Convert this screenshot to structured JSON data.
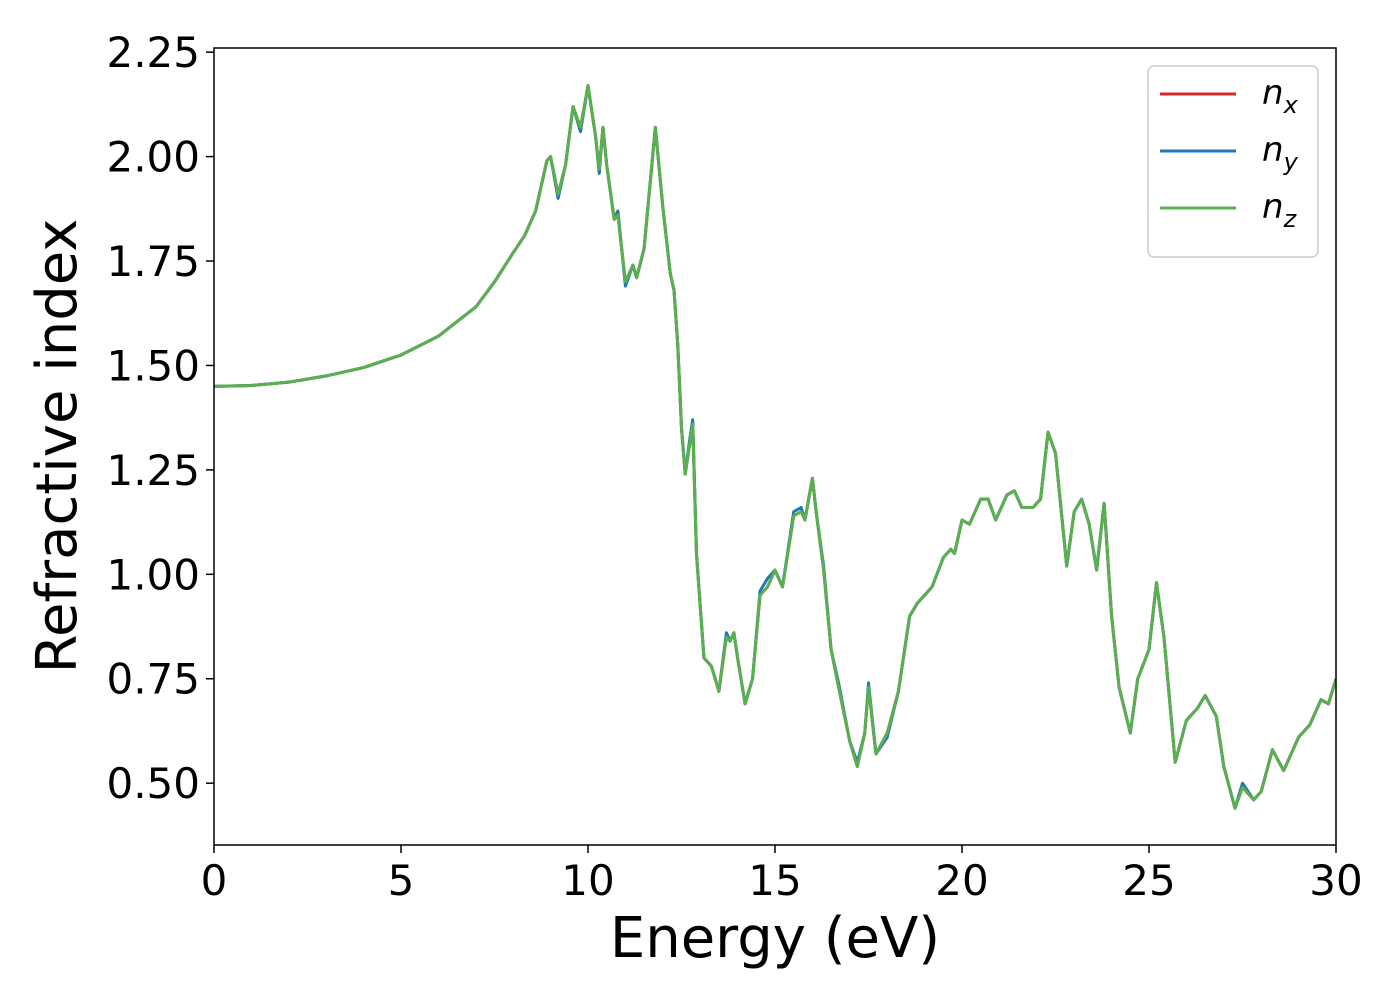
{
  "chart_data": {
    "type": "line",
    "xlabel": "Energy (eV)",
    "ylabel": "Refractive index",
    "xlim": [
      0,
      30
    ],
    "xticks": [
      0,
      5,
      10,
      15,
      20,
      25,
      30
    ],
    "ylim": [
      0.352,
      2.26
    ],
    "yticks": [
      {
        "value": 0.5,
        "label": "0.50"
      },
      0.75,
      {
        "value": 1,
        "label": "1.00"
      },
      1.25,
      {
        "value": 1.5,
        "label": "1.50"
      },
      1.75,
      {
        "value": 2,
        "label": "2.00"
      },
      2.25
    ],
    "legend": "upper right",
    "x": [
      0,
      1,
      2,
      3,
      4,
      5,
      6,
      7,
      7.5,
      8,
      8.3,
      8.6,
      8.9,
      9.0,
      9.2,
      9.4,
      9.6,
      9.8,
      10.0,
      10.2,
      10.3,
      10.4,
      10.5,
      10.7,
      10.8,
      11.0,
      11.2,
      11.3,
      11.5,
      11.8,
      12.0,
      12.2,
      12.3,
      12.4,
      12.5,
      12.6,
      12.7,
      12.8,
      12.9,
      13.1,
      13.3,
      13.5,
      13.7,
      13.8,
      13.9,
      14.0,
      14.2,
      14.4,
      14.6,
      14.8,
      15.0,
      15.2,
      15.5,
      15.7,
      15.8,
      16.0,
      16.1,
      16.3,
      16.5,
      16.7,
      17.0,
      17.2,
      17.4,
      17.5,
      17.7,
      18.0,
      18.3,
      18.6,
      18.8,
      19.2,
      19.5,
      19.7,
      19.8,
      20.0,
      20.2,
      20.5,
      20.7,
      20.9,
      21.2,
      21.4,
      21.6,
      21.9,
      22.1,
      22.3,
      22.5,
      22.8,
      23.0,
      23.2,
      23.4,
      23.6,
      23.8,
      24.0,
      24.2,
      24.5,
      24.7,
      25.0,
      25.2,
      25.4,
      25.7,
      26.0,
      26.3,
      26.5,
      26.8,
      27.0,
      27.3,
      27.5,
      27.8,
      28.0,
      28.3,
      28.6,
      29.0,
      29.3,
      29.6,
      29.8,
      30
    ],
    "series": [
      {
        "name": "nx",
        "color": "#d62728",
        "values": [
          1.45,
          1.452,
          1.46,
          1.475,
          1.495,
          1.525,
          1.57,
          1.64,
          1.7,
          1.77,
          1.81,
          1.87,
          1.99,
          2.0,
          1.91,
          1.98,
          2.12,
          2.07,
          2.17,
          2.05,
          1.97,
          2.07,
          1.98,
          1.85,
          1.86,
          1.7,
          1.74,
          1.71,
          1.78,
          2.07,
          1.88,
          1.72,
          1.68,
          1.55,
          1.35,
          1.24,
          1.3,
          1.36,
          1.05,
          0.8,
          0.78,
          0.72,
          0.85,
          0.84,
          0.86,
          0.8,
          0.69,
          0.75,
          0.95,
          0.97,
          1.01,
          0.97,
          1.14,
          1.15,
          1.13,
          1.23,
          1.15,
          1.01,
          0.82,
          0.73,
          0.6,
          0.54,
          0.62,
          0.73,
          0.57,
          0.62,
          0.72,
          0.9,
          0.93,
          0.97,
          1.04,
          1.06,
          1.05,
          1.13,
          1.12,
          1.18,
          1.18,
          1.13,
          1.19,
          1.2,
          1.16,
          1.16,
          1.18,
          1.34,
          1.29,
          1.02,
          1.15,
          1.18,
          1.12,
          1.01,
          1.17,
          0.9,
          0.73,
          0.62,
          0.75,
          0.82,
          0.98,
          0.85,
          0.55,
          0.65,
          0.68,
          0.71,
          0.66,
          0.54,
          0.44,
          0.49,
          0.46,
          0.48,
          0.58,
          0.53,
          0.61,
          0.64,
          0.7,
          0.69,
          0.75
        ]
      },
      {
        "name": "ny",
        "color": "#1f77b4",
        "values": [
          1.45,
          1.452,
          1.46,
          1.475,
          1.495,
          1.525,
          1.57,
          1.64,
          1.7,
          1.77,
          1.81,
          1.87,
          1.99,
          2.0,
          1.9,
          1.98,
          2.12,
          2.06,
          2.17,
          2.05,
          1.96,
          2.07,
          1.98,
          1.85,
          1.87,
          1.69,
          1.74,
          1.71,
          1.78,
          2.07,
          1.88,
          1.72,
          1.68,
          1.55,
          1.35,
          1.24,
          1.31,
          1.37,
          1.05,
          0.8,
          0.78,
          0.72,
          0.86,
          0.84,
          0.86,
          0.8,
          0.69,
          0.75,
          0.96,
          0.99,
          1.01,
          0.97,
          1.15,
          1.16,
          1.13,
          1.23,
          1.15,
          1.02,
          0.82,
          0.74,
          0.6,
          0.55,
          0.62,
          0.74,
          0.57,
          0.61,
          0.72,
          0.9,
          0.93,
          0.97,
          1.04,
          1.06,
          1.05,
          1.13,
          1.12,
          1.18,
          1.18,
          1.13,
          1.19,
          1.2,
          1.16,
          1.16,
          1.18,
          1.34,
          1.29,
          1.02,
          1.15,
          1.18,
          1.12,
          1.01,
          1.17,
          0.9,
          0.73,
          0.62,
          0.75,
          0.82,
          0.98,
          0.85,
          0.55,
          0.65,
          0.68,
          0.71,
          0.66,
          0.54,
          0.44,
          0.5,
          0.46,
          0.48,
          0.58,
          0.53,
          0.61,
          0.64,
          0.7,
          0.69,
          0.75
        ]
      },
      {
        "name": "nz",
        "color": "#5aaf50",
        "values": [
          1.45,
          1.452,
          1.46,
          1.475,
          1.495,
          1.525,
          1.57,
          1.64,
          1.7,
          1.77,
          1.81,
          1.87,
          1.99,
          2.0,
          1.91,
          1.98,
          2.12,
          2.07,
          2.17,
          2.05,
          1.97,
          2.07,
          1.98,
          1.85,
          1.86,
          1.7,
          1.74,
          1.71,
          1.78,
          2.07,
          1.88,
          1.72,
          1.68,
          1.55,
          1.35,
          1.24,
          1.3,
          1.36,
          1.05,
          0.8,
          0.78,
          0.72,
          0.85,
          0.84,
          0.86,
          0.8,
          0.69,
          0.75,
          0.95,
          0.97,
          1.01,
          0.97,
          1.14,
          1.15,
          1.13,
          1.23,
          1.15,
          1.01,
          0.82,
          0.73,
          0.6,
          0.54,
          0.62,
          0.73,
          0.57,
          0.62,
          0.72,
          0.9,
          0.93,
          0.97,
          1.04,
          1.06,
          1.05,
          1.13,
          1.12,
          1.18,
          1.18,
          1.13,
          1.19,
          1.2,
          1.16,
          1.16,
          1.18,
          1.34,
          1.29,
          1.02,
          1.15,
          1.18,
          1.12,
          1.01,
          1.17,
          0.9,
          0.73,
          0.62,
          0.75,
          0.82,
          0.98,
          0.85,
          0.55,
          0.65,
          0.68,
          0.71,
          0.66,
          0.54,
          0.44,
          0.49,
          0.46,
          0.48,
          0.58,
          0.53,
          0.61,
          0.64,
          0.7,
          0.69,
          0.75
        ]
      }
    ]
  }
}
